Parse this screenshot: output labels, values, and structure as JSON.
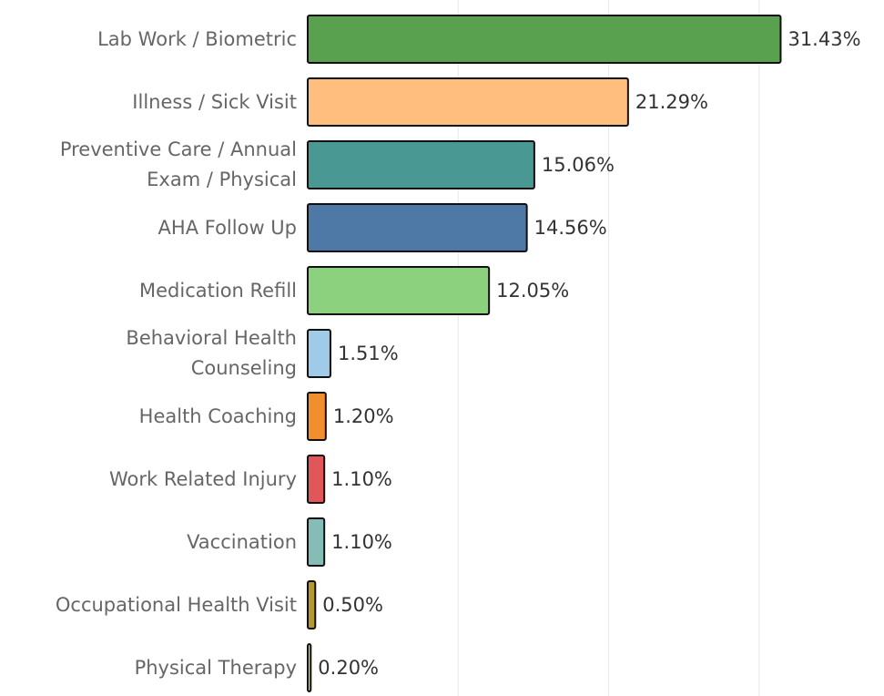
{
  "chart_data": {
    "type": "bar",
    "orientation": "horizontal",
    "categories": [
      "Lab Work / Biometric",
      "Illness / Sick Visit",
      "Preventive Care / Annual Exam / Physical",
      "AHA Follow Up",
      "Medication Refill",
      "Behavioral Health Counseling",
      "Health Coaching",
      "Work Related Injury",
      "Vaccination",
      "Occupational Health Visit",
      "Physical Therapy"
    ],
    "values": [
      31.43,
      21.29,
      15.06,
      14.56,
      12.05,
      1.51,
      1.2,
      1.1,
      1.1,
      0.5,
      0.2
    ],
    "value_labels": [
      "31.43%",
      "21.29%",
      "15.06%",
      "14.56%",
      "12.05%",
      "1.51%",
      "1.20%",
      "1.10%",
      "1.10%",
      "0.50%",
      "0.20%"
    ],
    "colors": [
      "#59a14f",
      "#ffbe7d",
      "#499894",
      "#4e79a7",
      "#8cd17d",
      "#a0cbe8",
      "#f28e2b",
      "#e15759",
      "#86bcb6",
      "#b6992d",
      "#f1ce63"
    ],
    "xlim": [
      0,
      38.3
    ],
    "xticks": [
      10,
      20,
      30
    ],
    "grid": true
  }
}
